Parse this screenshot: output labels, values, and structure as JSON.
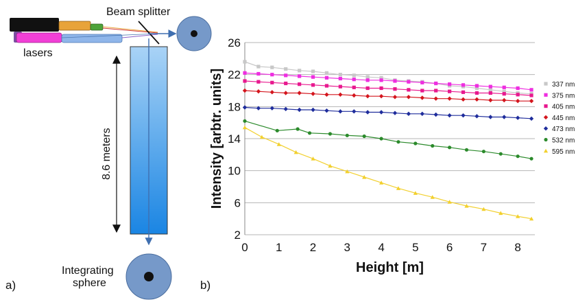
{
  "panel_a": {
    "label": "a)",
    "beam_splitter_label": "Beam splitter",
    "lasers_label": "lasers",
    "distance_label": "8.6 meters",
    "sphere_label_line1": "Integrating",
    "sphere_label_line2": "sphere",
    "colors": {
      "tank_top": "#a9d3f6",
      "tank_bottom": "#1a85e3",
      "sphere": "#7699c9",
      "beam": "#3f6fb0",
      "laser_black": "#111111",
      "laser_orange": "#e8a33a",
      "laser_green": "#4da33a",
      "laser_magenta": "#f13fd6",
      "laser_blue": "#8fb6ea",
      "laser_purple": "#7a4fa0"
    }
  },
  "panel_b": {
    "label": "b)"
  },
  "chart_data": {
    "type": "scatter",
    "xlabel": "Height [m]",
    "ylabel": "Intensity [arbtr. units]",
    "xlim": [
      0,
      8.5
    ],
    "ylim": [
      2,
      26
    ],
    "xticks": [
      "0",
      "1",
      "2",
      "3",
      "4",
      "5",
      "6",
      "7",
      "8"
    ],
    "yticks": [
      "2",
      "6",
      "10",
      "14",
      "18",
      "22",
      "26"
    ],
    "grid": "horizontal",
    "legend_position": "right",
    "series": [
      {
        "name": "337 nm",
        "color": "#c8c8c8",
        "marker": "square",
        "x": [
          0,
          0.4,
          0.8,
          1.2,
          1.6,
          2.0,
          2.4,
          2.8,
          3.2,
          3.6,
          4.0,
          4.4,
          4.8,
          5.2,
          5.6,
          6.0,
          6.4,
          6.8,
          7.2,
          7.6,
          8.0,
          8.4
        ],
        "y": [
          23.6,
          23.0,
          22.9,
          22.7,
          22.5,
          22.4,
          22.2,
          22.0,
          21.9,
          21.7,
          21.6,
          21.3,
          21.2,
          21.1,
          20.9,
          20.6,
          20.5,
          20.3,
          20.1,
          19.9,
          19.7,
          19.6
        ]
      },
      {
        "name": "375 nm",
        "color": "#ee2ee0",
        "marker": "square",
        "x": [
          0,
          0.4,
          0.8,
          1.2,
          1.6,
          2.0,
          2.4,
          2.8,
          3.2,
          3.6,
          4.0,
          4.4,
          4.8,
          5.2,
          5.6,
          6.0,
          6.4,
          6.8,
          7.2,
          7.6,
          8.0,
          8.4
        ],
        "y": [
          22.2,
          22.1,
          22.0,
          21.9,
          21.8,
          21.7,
          21.6,
          21.5,
          21.4,
          21.3,
          21.3,
          21.2,
          21.1,
          21.0,
          20.9,
          20.8,
          20.7,
          20.6,
          20.5,
          20.4,
          20.3,
          20.1
        ]
      },
      {
        "name": "405 nm",
        "color": "#e8198f",
        "marker": "square",
        "x": [
          0,
          0.4,
          0.8,
          1.2,
          1.6,
          2.0,
          2.4,
          2.8,
          3.2,
          3.6,
          4.0,
          4.4,
          4.8,
          5.2,
          5.6,
          6.0,
          6.4,
          6.8,
          7.2,
          7.6,
          8.0,
          8.4
        ],
        "y": [
          21.2,
          21.1,
          21.0,
          20.9,
          20.8,
          20.7,
          20.6,
          20.5,
          20.4,
          20.3,
          20.3,
          20.2,
          20.1,
          20.0,
          20.0,
          19.9,
          19.8,
          19.7,
          19.7,
          19.6,
          19.5,
          19.4
        ]
      },
      {
        "name": "445 nm",
        "color": "#d4151d",
        "marker": "diamond",
        "x": [
          0,
          0.4,
          0.8,
          1.2,
          1.6,
          2.0,
          2.4,
          2.8,
          3.2,
          3.6,
          4.0,
          4.4,
          4.8,
          5.2,
          5.6,
          6.0,
          6.4,
          6.8,
          7.2,
          7.6,
          8.0,
          8.4
        ],
        "y": [
          20.0,
          19.9,
          19.8,
          19.7,
          19.7,
          19.6,
          19.5,
          19.5,
          19.4,
          19.3,
          19.3,
          19.2,
          19.2,
          19.1,
          19.0,
          19.0,
          18.9,
          18.9,
          18.8,
          18.8,
          18.7,
          18.7
        ]
      },
      {
        "name": "473 nm",
        "color": "#1f2d9c",
        "marker": "diamond",
        "x": [
          0,
          0.4,
          0.8,
          1.2,
          1.6,
          2.0,
          2.4,
          2.8,
          3.2,
          3.6,
          4.0,
          4.4,
          4.8,
          5.2,
          5.6,
          6.0,
          6.4,
          6.8,
          7.2,
          7.6,
          8.0,
          8.4
        ],
        "y": [
          17.9,
          17.8,
          17.8,
          17.7,
          17.6,
          17.6,
          17.5,
          17.4,
          17.4,
          17.3,
          17.3,
          17.2,
          17.1,
          17.1,
          17.0,
          16.9,
          16.9,
          16.8,
          16.7,
          16.7,
          16.6,
          16.5
        ]
      },
      {
        "name": "532 nm",
        "color": "#2b8a2b",
        "marker": "circle",
        "x": [
          0,
          0.95,
          1.55,
          1.9,
          2.5,
          3.0,
          3.5,
          4.0,
          4.5,
          5.0,
          5.5,
          6.0,
          6.5,
          7.0,
          7.5,
          8.0,
          8.4
        ],
        "y": [
          16.2,
          15.0,
          15.2,
          14.7,
          14.6,
          14.4,
          14.3,
          14.0,
          13.6,
          13.4,
          13.1,
          12.9,
          12.6,
          12.4,
          12.1,
          11.8,
          11.5
        ]
      },
      {
        "name": "595 nm",
        "color": "#f2d02e",
        "marker": "triangle",
        "x": [
          0,
          0.5,
          1.0,
          1.5,
          2.0,
          2.5,
          3.0,
          3.5,
          4.0,
          4.5,
          5.0,
          5.5,
          6.0,
          6.5,
          7.0,
          7.5,
          8.0,
          8.4
        ],
        "y": [
          15.4,
          14.2,
          13.3,
          12.3,
          11.5,
          10.6,
          9.9,
          9.2,
          8.5,
          7.8,
          7.2,
          6.7,
          6.1,
          5.6,
          5.2,
          4.7,
          4.3,
          4.0
        ]
      }
    ]
  }
}
